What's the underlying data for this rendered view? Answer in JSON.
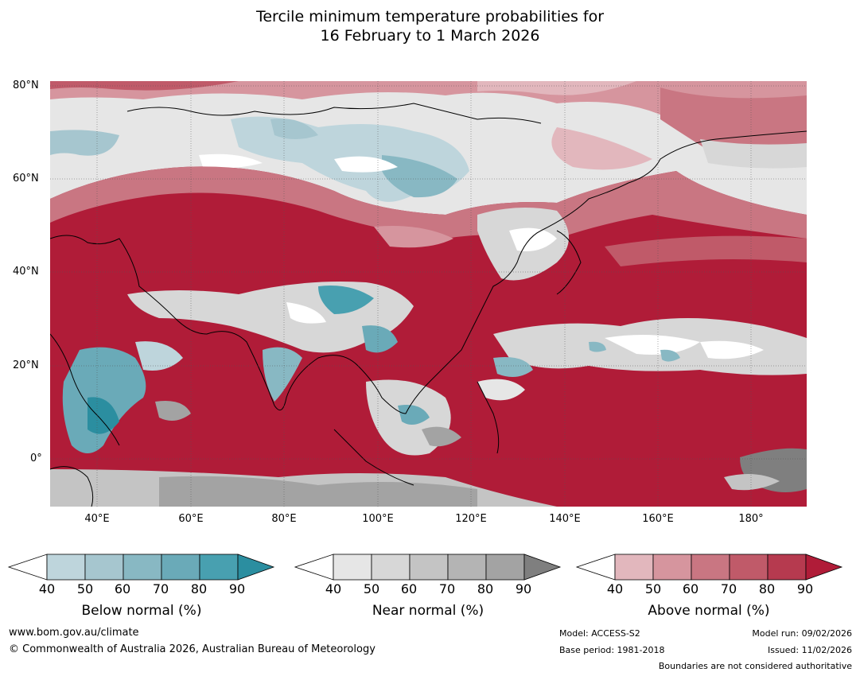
{
  "title_line1": "Tercile minimum temperature probabilities for",
  "title_line2": "16 February to 1 March 2026",
  "lat_labels": [
    "80°N",
    "60°N",
    "40°N",
    "20°N",
    "0°"
  ],
  "lon_labels": [
    "40°E",
    "60°E",
    "80°E",
    "100°E",
    "120°E",
    "140°E",
    "160°E",
    "180°"
  ],
  "colorbars": [
    {
      "label": "Below normal (%)",
      "ticks": [
        "40",
        "50",
        "60",
        "70",
        "80",
        "90"
      ],
      "colors": [
        "#ffffff",
        "#bed5dc",
        "#a6c6cf",
        "#88b8c3",
        "#6aaab8",
        "#48a0b0",
        "#2b8ea0"
      ]
    },
    {
      "label": "Near normal (%)",
      "ticks": [
        "40",
        "50",
        "60",
        "70",
        "80",
        "90"
      ],
      "colors": [
        "#ffffff",
        "#e6e6e6",
        "#d7d7d7",
        "#c4c4c4",
        "#b4b4b4",
        "#a3a3a3",
        "#7f7f7f"
      ]
    },
    {
      "label": "Above normal (%)",
      "ticks": [
        "40",
        "50",
        "60",
        "70",
        "80",
        "90"
      ],
      "colors": [
        "#ffffff",
        "#e2b7bd",
        "#d6959e",
        "#c97682",
        "#c05a69",
        "#b63a4f",
        "#b01c38"
      ]
    }
  ],
  "footer": {
    "website": "www.bom.gov.au/climate",
    "copyright": "© Commonwealth of Australia 2026, Australian Bureau of Meteorology",
    "model": "Model: ACCESS-S2",
    "base_period": "Base period: 1981-2018",
    "model_run": "Model run: 09/02/2026",
    "issued": "Issued: 11/02/2026",
    "disclaimer": "Boundaries are not considered authoritative"
  }
}
